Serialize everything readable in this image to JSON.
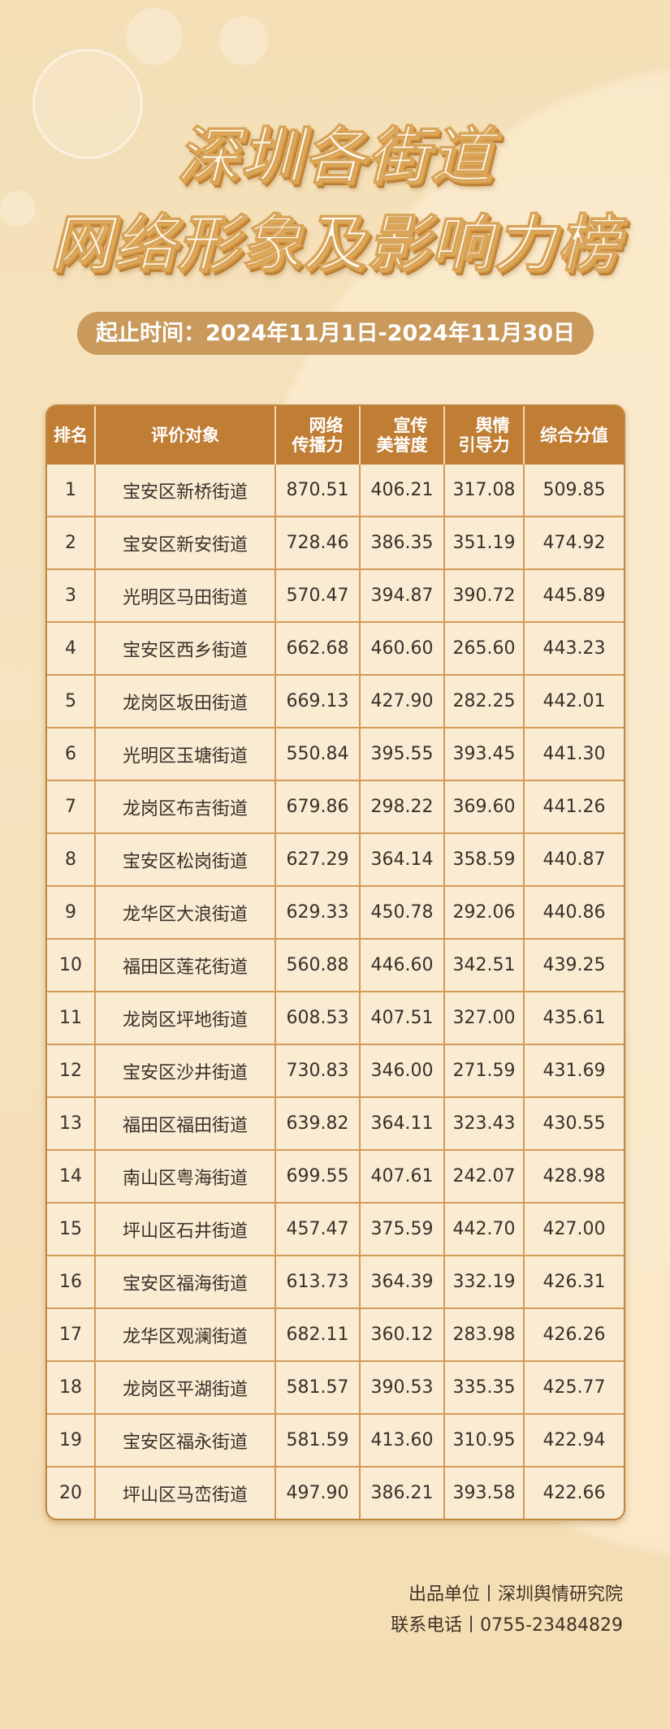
{
  "title": {
    "line1": "深圳各街道",
    "line2": "网络形象及影响力榜"
  },
  "period": "起止时间：2024年11月1日-2024年11月30日",
  "table": {
    "headers": [
      "排名",
      "评价对象",
      "网络传播力",
      "宣传美誉度",
      "舆情引导力",
      "综合分值"
    ],
    "header_lines": [
      [
        "排名"
      ],
      [
        "评价对象"
      ],
      [
        "网络",
        "传播力"
      ],
      [
        "宣传",
        "美誉度"
      ],
      [
        "舆情",
        "引导力"
      ],
      [
        "综合分值"
      ]
    ],
    "rows": [
      [
        "1",
        "宝安区新桥街道",
        "870.51",
        "406.21",
        "317.08",
        "509.85"
      ],
      [
        "2",
        "宝安区新安街道",
        "728.46",
        "386.35",
        "351.19",
        "474.92"
      ],
      [
        "3",
        "光明区马田街道",
        "570.47",
        "394.87",
        "390.72",
        "445.89"
      ],
      [
        "4",
        "宝安区西乡街道",
        "662.68",
        "460.60",
        "265.60",
        "443.23"
      ],
      [
        "5",
        "龙岗区坂田街道",
        "669.13",
        "427.90",
        "282.25",
        "442.01"
      ],
      [
        "6",
        "光明区玉塘街道",
        "550.84",
        "395.55",
        "393.45",
        "441.30"
      ],
      [
        "7",
        "龙岗区布吉街道",
        "679.86",
        "298.22",
        "369.60",
        "441.26"
      ],
      [
        "8",
        "宝安区松岗街道",
        "627.29",
        "364.14",
        "358.59",
        "440.87"
      ],
      [
        "9",
        "龙华区大浪街道",
        "629.33",
        "450.78",
        "292.06",
        "440.86"
      ],
      [
        "10",
        "福田区莲花街道",
        "560.88",
        "446.60",
        "342.51",
        "439.25"
      ],
      [
        "11",
        "龙岗区坪地街道",
        "608.53",
        "407.51",
        "327.00",
        "435.61"
      ],
      [
        "12",
        "宝安区沙井街道",
        "730.83",
        "346.00",
        "271.59",
        "431.69"
      ],
      [
        "13",
        "福田区福田街道",
        "639.82",
        "364.11",
        "323.43",
        "430.55"
      ],
      [
        "14",
        "南山区粤海街道",
        "699.55",
        "407.61",
        "242.07",
        "428.98"
      ],
      [
        "15",
        "坪山区石井街道",
        "457.47",
        "375.59",
        "442.70",
        "427.00"
      ],
      [
        "16",
        "宝安区福海街道",
        "613.73",
        "364.39",
        "332.19",
        "426.31"
      ],
      [
        "17",
        "龙华区观澜街道",
        "682.11",
        "360.12",
        "283.98",
        "426.26"
      ],
      [
        "18",
        "龙岗区平湖街道",
        "581.57",
        "390.53",
        "335.35",
        "425.77"
      ],
      [
        "19",
        "宝安区福永街道",
        "581.59",
        "413.60",
        "310.95",
        "422.94"
      ],
      [
        "20",
        "坪山区马峦街道",
        "497.90",
        "386.21",
        "393.58",
        "422.66"
      ]
    ]
  },
  "footer": {
    "producer": "出品单位丨深圳舆情研究院",
    "phone": "联系电话丨0755-23484829"
  },
  "colors": {
    "header_bg": "#c07d34",
    "pill_bg": "#c99a5c",
    "background": "#f4dfb6",
    "cell_bg": "#faecd3"
  },
  "icons": [
    "wifi-icon",
    "cloud-icon",
    "cloud-download-icon",
    "share-icon"
  ]
}
